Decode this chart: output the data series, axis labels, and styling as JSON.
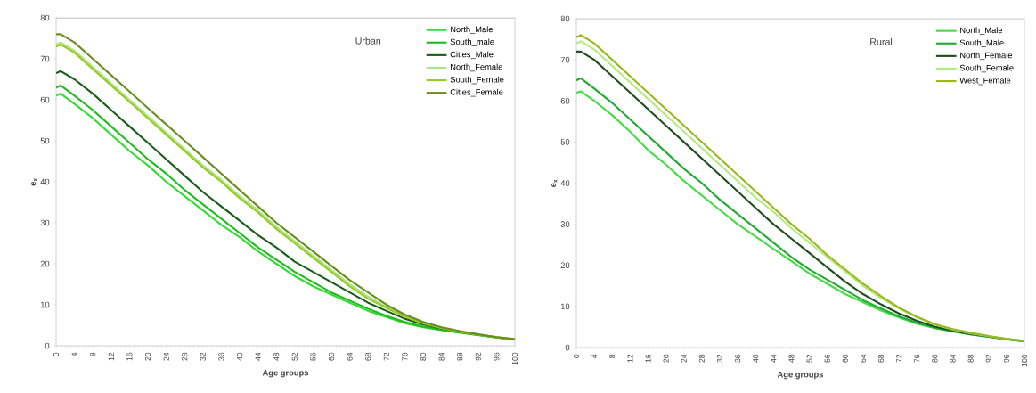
{
  "chart_data": [
    {
      "type": "line",
      "title": "Urban",
      "xlabel": "Age groups",
      "ylabel": "e$_{x}$",
      "x": [
        0,
        1,
        4,
        8,
        12,
        16,
        20,
        24,
        28,
        32,
        36,
        40,
        44,
        48,
        52,
        56,
        60,
        64,
        68,
        72,
        76,
        80,
        84,
        88,
        92,
        96,
        100
      ],
      "xlim": [
        0,
        100
      ],
      "xticks": [
        0,
        4,
        8,
        12,
        16,
        20,
        24,
        28,
        32,
        36,
        40,
        44,
        48,
        52,
        56,
        60,
        64,
        68,
        72,
        76,
        80,
        84,
        88,
        92,
        96,
        100
      ],
      "ylim": [
        0,
        80
      ],
      "yticks": [
        0,
        10,
        20,
        30,
        40,
        50,
        60,
        70,
        80
      ],
      "legend": "top right",
      "marker": "none",
      "line_style": "solid",
      "grid": false,
      "series": [
        {
          "name": "North_Male",
          "color": "#33dd33",
          "values": [
            61,
            61.5,
            59,
            55.5,
            51.5,
            47.5,
            44,
            40,
            36.5,
            33,
            29.5,
            26.5,
            23,
            20,
            17,
            14.5,
            12.5,
            10.5,
            8.5,
            7,
            5.5,
            4.5,
            3.8,
            3.2,
            2.6,
            2,
            1.5
          ]
        },
        {
          "name": "South_male",
          "color": "#22bb22",
          "values": [
            63,
            63.5,
            61,
            57.5,
            53.5,
            49.5,
            45.5,
            42,
            38,
            34.5,
            31,
            27.5,
            24,
            21,
            18,
            15.5,
            13,
            11,
            9,
            7.3,
            5.8,
            4.7,
            3.9,
            3.2,
            2.6,
            2,
            1.5
          ]
        },
        {
          "name": "Cities_Male",
          "color": "#1a5e1a",
          "values": [
            66.5,
            67,
            65,
            61.5,
            57.5,
            53.5,
            49.5,
            45.5,
            41.5,
            37.5,
            34,
            30.5,
            27,
            24,
            20.5,
            18,
            15.5,
            13,
            10.5,
            8.5,
            6.6,
            5.2,
            4.2,
            3.4,
            2.7,
            null,
            null
          ]
        },
        {
          "name": "North_Female",
          "color": "#aae68a",
          "values": [
            73.5,
            74,
            72,
            68,
            64,
            60,
            56,
            52,
            48,
            44,
            40.5,
            36.5,
            33,
            29,
            25.5,
            22,
            18.5,
            15,
            12,
            9.5,
            7.3,
            5.6,
            4.4,
            3.5,
            2.8,
            2.1,
            1.6
          ]
        },
        {
          "name": "South_Female",
          "color": "#99cc22",
          "values": [
            73,
            73.5,
            71.5,
            67.5,
            63.5,
            59.5,
            55.5,
            51.5,
            47.5,
            43.5,
            40,
            36,
            32.5,
            28.5,
            25,
            21.5,
            18,
            14.5,
            11.5,
            9.2,
            7.1,
            5.5,
            4.3,
            3.4,
            2.7,
            2.1,
            1.6
          ]
        },
        {
          "name": "Cities_Female",
          "color": "#6b8e23",
          "values": [
            76,
            76,
            74,
            70,
            66,
            62,
            58,
            54,
            50,
            46,
            42,
            38,
            34,
            30,
            26.5,
            23,
            19.5,
            16,
            13,
            10,
            7.6,
            5.8,
            4.5,
            3.6,
            2.8,
            2.1,
            1.6
          ]
        }
      ]
    },
    {
      "type": "line",
      "title": "Rural",
      "xlabel": "Age groups",
      "ylabel": "e$_{x}$",
      "x": [
        0,
        1,
        4,
        8,
        12,
        16,
        20,
        24,
        28,
        32,
        36,
        40,
        44,
        48,
        52,
        56,
        60,
        64,
        68,
        72,
        76,
        80,
        84,
        88,
        92,
        96,
        100
      ],
      "xlim": [
        0,
        100
      ],
      "xticks": [
        0,
        4,
        8,
        12,
        16,
        20,
        24,
        28,
        32,
        36,
        40,
        44,
        48,
        52,
        56,
        60,
        64,
        68,
        72,
        76,
        80,
        84,
        88,
        92,
        96,
        100
      ],
      "ylim": [
        0,
        80
      ],
      "yticks": [
        0,
        10,
        20,
        30,
        40,
        50,
        60,
        70,
        80
      ],
      "legend": "top right",
      "marker": "none",
      "line_style": "solid",
      "grid": false,
      "series": [
        {
          "name": "North_Male",
          "color": "#44dd44",
          "values": [
            62,
            62.3,
            60,
            56.5,
            52.5,
            48,
            44.5,
            40.5,
            37,
            33.5,
            30,
            27,
            24,
            21,
            18,
            15.5,
            13,
            11,
            9,
            7.3,
            5.8,
            4.7,
            3.9,
            3.2,
            2.6,
            2,
            1.5
          ]
        },
        {
          "name": "South_Male",
          "color": "#22aa33",
          "values": [
            65,
            65.5,
            63,
            59.5,
            55.5,
            51.5,
            47.5,
            43.5,
            40,
            36,
            32.5,
            29,
            25.5,
            22,
            19,
            16.5,
            14,
            11.5,
            9.5,
            7.6,
            6,
            4.8,
            4,
            3.2,
            2.6,
            2,
            1.5
          ]
        },
        {
          "name": "North_Female",
          "color": "#1f4f1f",
          "values": [
            72,
            72,
            70,
            66,
            62,
            58,
            54,
            50,
            46,
            42,
            38,
            34,
            30,
            26.5,
            23,
            19.5,
            16,
            13,
            10.5,
            8.3,
            6.5,
            5.1,
            4.1,
            3.3,
            2.7,
            2.1,
            1.6
          ]
        },
        {
          "name": "South_Female",
          "color": "#b5ea80",
          "values": [
            74,
            74.5,
            72.5,
            68.5,
            64.5,
            60.5,
            56.5,
            52.5,
            48.5,
            44.5,
            40.5,
            36.5,
            33,
            29,
            25.5,
            22,
            18.5,
            15,
            12,
            9.5,
            7.3,
            5.6,
            4.4,
            3.5,
            2.8,
            2.1,
            1.6
          ]
        },
        {
          "name": "West_Female",
          "color": "#99b81f",
          "values": [
            75.5,
            76,
            74,
            70,
            66,
            62,
            58,
            54,
            50,
            46,
            42,
            38,
            34,
            30,
            26.5,
            22.5,
            19,
            15.5,
            12.5,
            9.7,
            7.5,
            5.7,
            4.5,
            3.6,
            2.8,
            2.1,
            1.6
          ]
        }
      ]
    }
  ]
}
